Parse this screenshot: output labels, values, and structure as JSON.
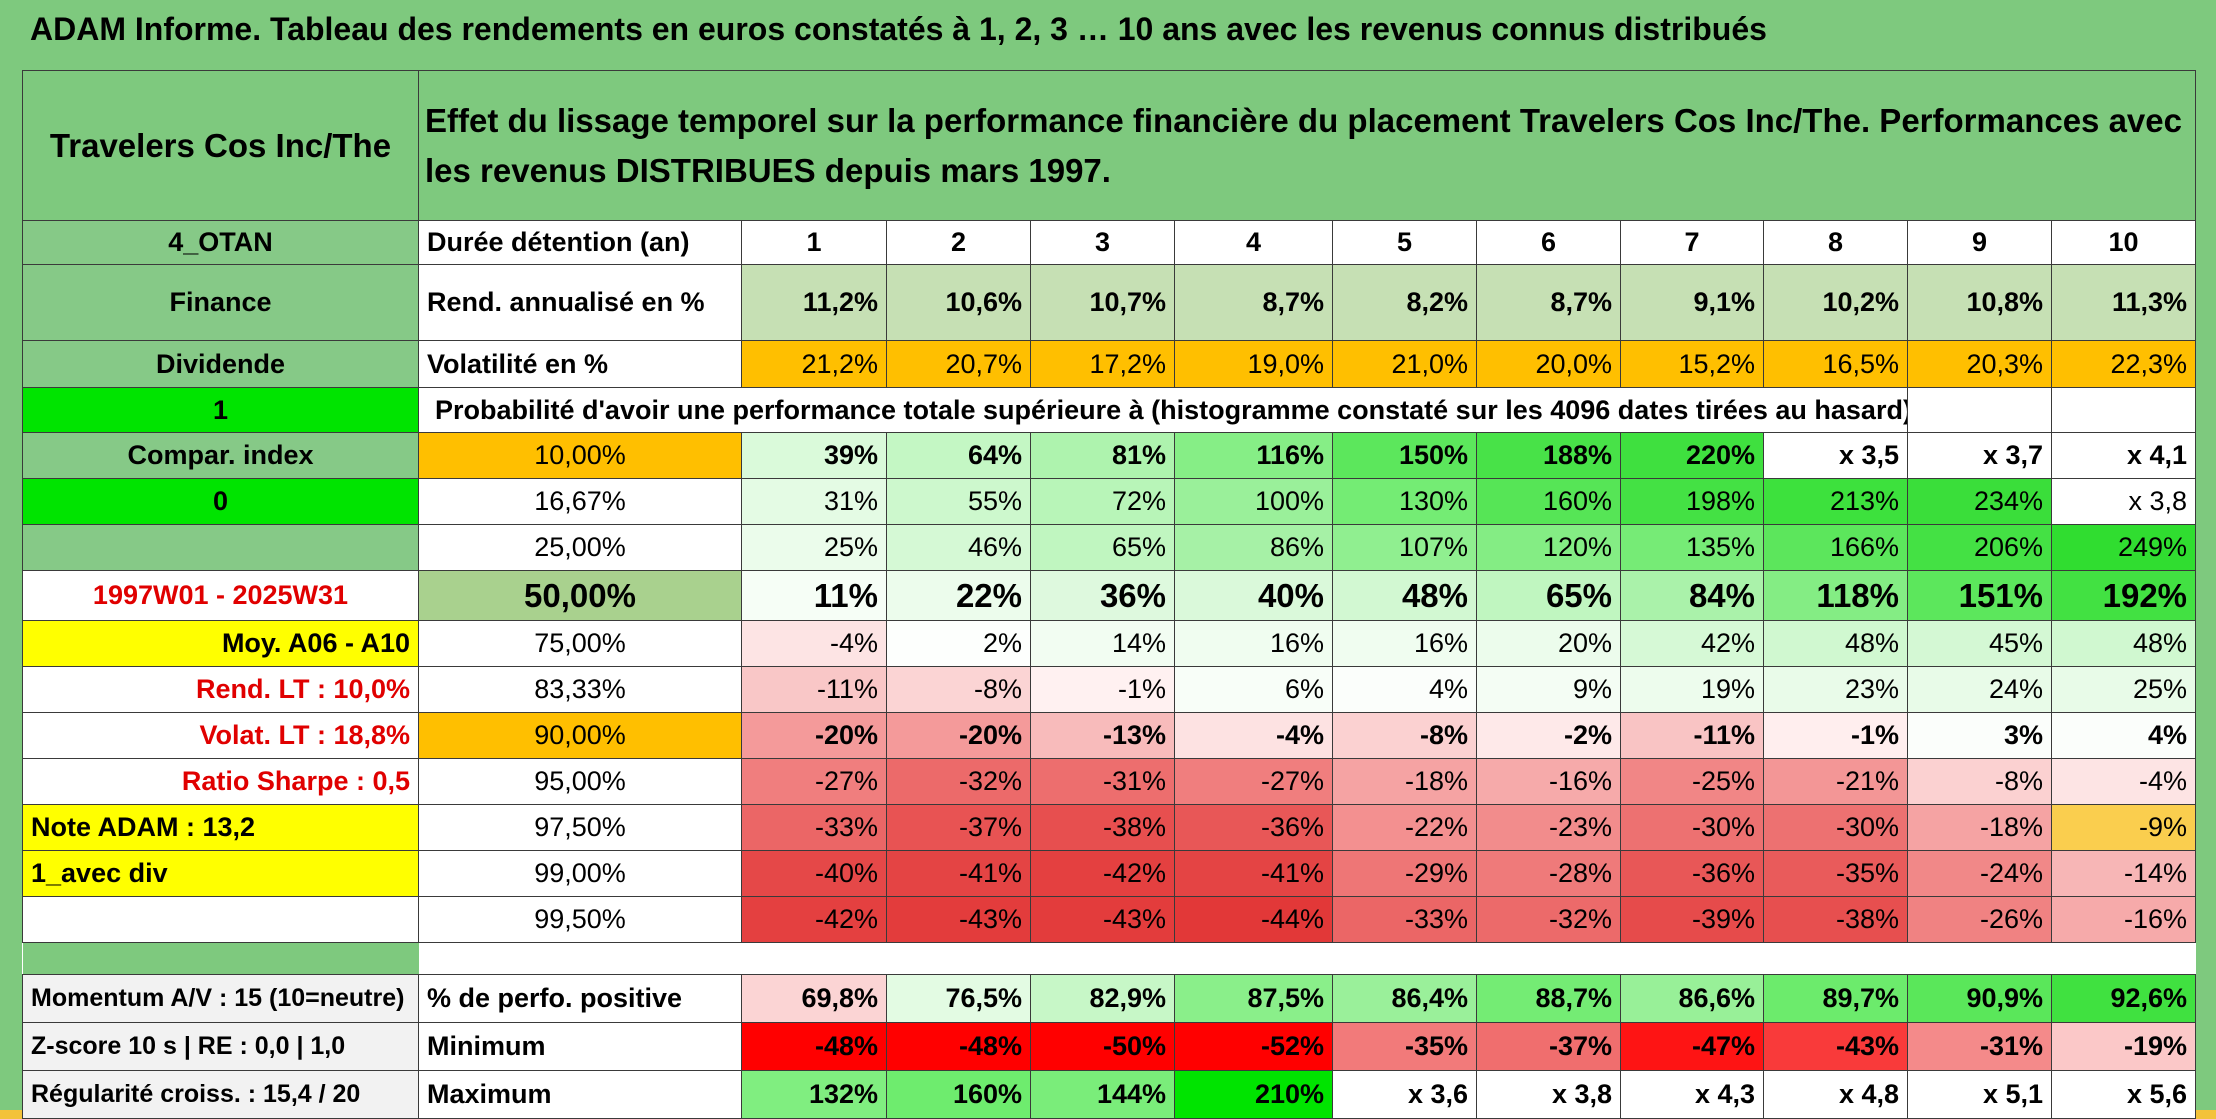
{
  "title": "ADAM Informe. Tableau des rendements en euros constatés à 1, 2, 3 … 10 ans avec les revenus connus distribués",
  "header": {
    "name": "Travelers Cos Inc/The",
    "description": "Effet du lissage temporel sur la performance financière du placement Travelers Cos Inc/The. Performances avec les revenus DISTRIBUES depuis mars 1997."
  },
  "left": {
    "otan": "4_OTAN",
    "sector": "Finance",
    "dividend": "Dividende",
    "one": "1",
    "compar_index": "Compar. index",
    "zero": "0",
    "period": "1997W01 - 2025W31",
    "moy": "Moy. A06 - A10",
    "rend_lt": "Rend. LT :   10,0%",
    "volat_lt": "Volat. LT :   18,8%",
    "sharpe": "Ratio Sharpe :   0,5",
    "note": "Note ADAM : 13,2",
    "div": "1_avec div",
    "momentum": "Momentum A/V : 15 (10=neutre)",
    "zscore": "Z-score 10 s | RE : 0,0 | 1,0",
    "regularite": "Régularité croiss. : 15,4 / 20"
  },
  "labels": {
    "duree": "Durée détention (an)",
    "rend": "Rend. annualisé en %",
    "vol": "Volatilité en %",
    "proba": "Probabilité d'avoir une performance totale supérieure à (histogramme constaté sur les 4096 dates tirées au hasard)",
    "positive": "% de perfo. positive",
    "minimum": "Minimum",
    "maximum": "Maximum"
  },
  "years": [
    "1",
    "2",
    "3",
    "4",
    "5",
    "6",
    "7",
    "8",
    "9",
    "10"
  ],
  "rend": [
    "11,2%",
    "10,6%",
    "10,7%",
    "8,7%",
    "8,2%",
    "8,7%",
    "9,1%",
    "10,2%",
    "10,8%",
    "11,3%"
  ],
  "vol": [
    "21,2%",
    "20,7%",
    "17,2%",
    "19,0%",
    "21,0%",
    "20,0%",
    "15,2%",
    "16,5%",
    "20,3%",
    "22,3%"
  ],
  "prob_rows": [
    {
      "p": "10,00%",
      "v": [
        "39%",
        "64%",
        "81%",
        "116%",
        "150%",
        "188%",
        "220%",
        "x 3,5",
        "x 3,7",
        "x 4,1"
      ],
      "c": [
        "#dafada",
        "#c4f7c4",
        "#aef3ae",
        "#86ee86",
        "#5ce75c",
        "#48e248",
        "#3fe03f",
        "#ffffff",
        "#ffffff",
        "#ffffff"
      ]
    },
    {
      "p": "16,67%",
      "v": [
        "31%",
        "55%",
        "72%",
        "100%",
        "130%",
        "160%",
        "198%",
        "213%",
        "234%",
        "x 3,8"
      ],
      "c": [
        "#e4fbe4",
        "#cdf8cd",
        "#b8f5b8",
        "#9af09a",
        "#74ec74",
        "#56e556",
        "#44e144",
        "#3de13d",
        "#3ade3a",
        "#ffffff"
      ]
    },
    {
      "p": "25,00%",
      "v": [
        "25%",
        "46%",
        "65%",
        "86%",
        "107%",
        "120%",
        "135%",
        "166%",
        "206%",
        "249%"
      ],
      "c": [
        "#ebfceb",
        "#d5f9d5",
        "#c0f6c0",
        "#a6f1a6",
        "#90ef90",
        "#84ed84",
        "#76eb76",
        "#5ce65c",
        "#44e144",
        "#30dd30"
      ]
    },
    {
      "p": "50,00%",
      "v": [
        "11%",
        "22%",
        "36%",
        "40%",
        "48%",
        "65%",
        "84%",
        "118%",
        "151%",
        "192%"
      ],
      "c": [
        "#f6fef6",
        "#ecfcec",
        "#def9de",
        "#daf9da",
        "#d2f8d2",
        "#c0f6c0",
        "#aaf2aa",
        "#84ed84",
        "#5ce75c",
        "#42e142"
      ]
    },
    {
      "p": "75,00%",
      "v": [
        "-4%",
        "2%",
        "14%",
        "16%",
        "16%",
        "20%",
        "42%",
        "48%",
        "45%",
        "48%"
      ],
      "c": [
        "#fde4e4",
        "#fdfffd",
        "#f2fdf2",
        "#f0fdf0",
        "#f0fdf0",
        "#ecfcec",
        "#d6f9d6",
        "#d0f8d0",
        "#d4f8d4",
        "#d0f8d0"
      ]
    },
    {
      "p": "83,33%",
      "v": [
        "-11%",
        "-8%",
        "-1%",
        "6%",
        "4%",
        "9%",
        "19%",
        "23%",
        "24%",
        "25%"
      ],
      "c": [
        "#f9c7c7",
        "#fbd4d4",
        "#fff1f1",
        "#f8fef8",
        "#fbfefb",
        "#f4fdf4",
        "#edfced",
        "#e9fbe9",
        "#e8fbe8",
        "#e8fbe8"
      ]
    },
    {
      "p": "90,00%",
      "v": [
        "-20%",
        "-20%",
        "-13%",
        "-4%",
        "-8%",
        "-2%",
        "-11%",
        "-1%",
        "3%",
        "4%"
      ],
      "c": [
        "#f49a9a",
        "#f49a9a",
        "#f8bbbb",
        "#fde2e2",
        "#fbd1d1",
        "#fee9e9",
        "#f9c4c4",
        "#ffeeee",
        "#fbfefb",
        "#fbfefb"
      ]
    },
    {
      "p": "95,00%",
      "v": [
        "-27%",
        "-32%",
        "-31%",
        "-27%",
        "-18%",
        "-16%",
        "-25%",
        "-21%",
        "-8%",
        "-4%"
      ],
      "c": [
        "#f07e7e",
        "#ec6a6a",
        "#ed6e6e",
        "#f07e7e",
        "#f5a3a3",
        "#f6aaaa",
        "#f18686",
        "#f39696",
        "#fbd1d1",
        "#fde4e4"
      ]
    },
    {
      "p": "97,50%",
      "v": [
        "-33%",
        "-37%",
        "-38%",
        "-36%",
        "-22%",
        "-23%",
        "-30%",
        "-30%",
        "-18%",
        "-9%"
      ],
      "c": [
        "#eb6666",
        "#e85353",
        "#e74f4f",
        "#e85757",
        "#f39090",
        "#f28c8c",
        "#ed7171",
        "#ed7171",
        "#f5a3a3",
        "#face4e"
      ]
    },
    {
      "p": "99,00%",
      "v": [
        "-40%",
        "-41%",
        "-42%",
        "-41%",
        "-29%",
        "-28%",
        "-36%",
        "-35%",
        "-24%",
        "-14%"
      ],
      "c": [
        "#e54848",
        "#e44444",
        "#e44040",
        "#e44444",
        "#ee7676",
        "#ef7a7a",
        "#e85757",
        "#e95b5b",
        "#f18888",
        "#f7b6b6"
      ]
    },
    {
      "p": "99,50%",
      "v": [
        "-42%",
        "-43%",
        "-43%",
        "-44%",
        "-33%",
        "-32%",
        "-39%",
        "-38%",
        "-26%",
        "-16%"
      ],
      "c": [
        "#e44040",
        "#e33c3c",
        "#e33c3c",
        "#e23838",
        "#eb6666",
        "#ec6a6a",
        "#e64b4b",
        "#e74f4f",
        "#f08282",
        "#f6aaaa"
      ]
    }
  ],
  "positive": [
    "69,8%",
    "76,5%",
    "82,9%",
    "87,5%",
    "86,4%",
    "88,7%",
    "86,6%",
    "89,7%",
    "90,9%",
    "92,6%"
  ],
  "minimum": [
    "-48%",
    "-48%",
    "-50%",
    "-52%",
    "-35%",
    "-37%",
    "-47%",
    "-43%",
    "-31%",
    "-19%"
  ],
  "maximum": [
    "132%",
    "160%",
    "144%",
    "210%",
    "x 3,6",
    "x 3,8",
    "x 4,3",
    "x 4,8",
    "x 5,1",
    "x 5,6"
  ]
}
